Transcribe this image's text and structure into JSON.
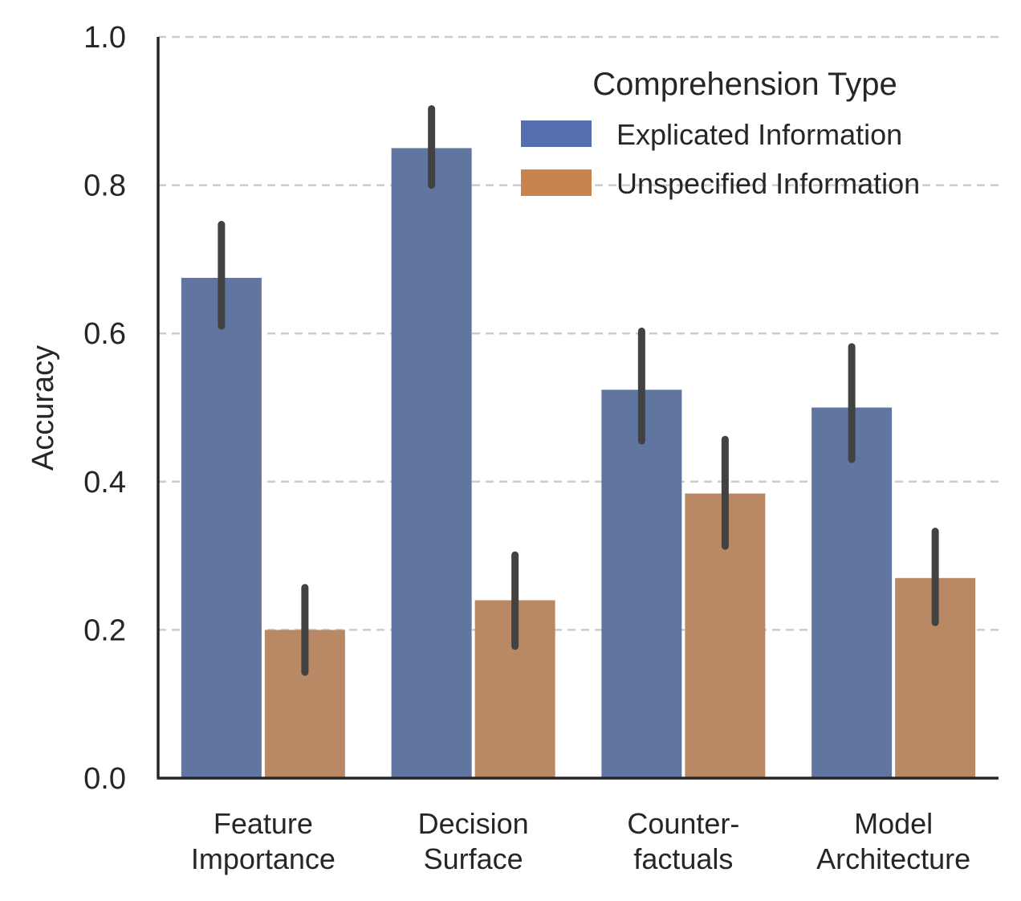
{
  "chart_data": {
    "type": "bar",
    "title": "",
    "xlabel": "",
    "ylabel": "Accuracy",
    "ylim": [
      0,
      1.0
    ],
    "yticks": [
      "0.0",
      "0.2",
      "0.4",
      "0.6",
      "0.8",
      "1.0"
    ],
    "grid": "horizontal dashed",
    "categories": [
      [
        "Feature",
        "Importance"
      ],
      [
        "Decision",
        "Surface"
      ],
      [
        "Counter-",
        "factuals"
      ],
      [
        "Model",
        "Architecture"
      ]
    ],
    "legend": {
      "title": "Comprehension Type",
      "position": "top-right"
    },
    "series": [
      {
        "name": "Explicated Information",
        "color": "#6075a0",
        "legend_color": "#5470b0",
        "values": [
          0.675,
          0.85,
          0.524,
          0.5
        ],
        "ci_low": [
          0.61,
          0.8,
          0.455,
          0.43
        ],
        "ci_high": [
          0.747,
          0.903,
          0.603,
          0.582
        ]
      },
      {
        "name": "Unspecified Information",
        "color": "#b98965",
        "legend_color": "#c9834f",
        "values": [
          0.2,
          0.24,
          0.384,
          0.27
        ],
        "ci_low": [
          0.143,
          0.178,
          0.313,
          0.21
        ],
        "ci_high": [
          0.257,
          0.301,
          0.457,
          0.333
        ]
      }
    ]
  }
}
